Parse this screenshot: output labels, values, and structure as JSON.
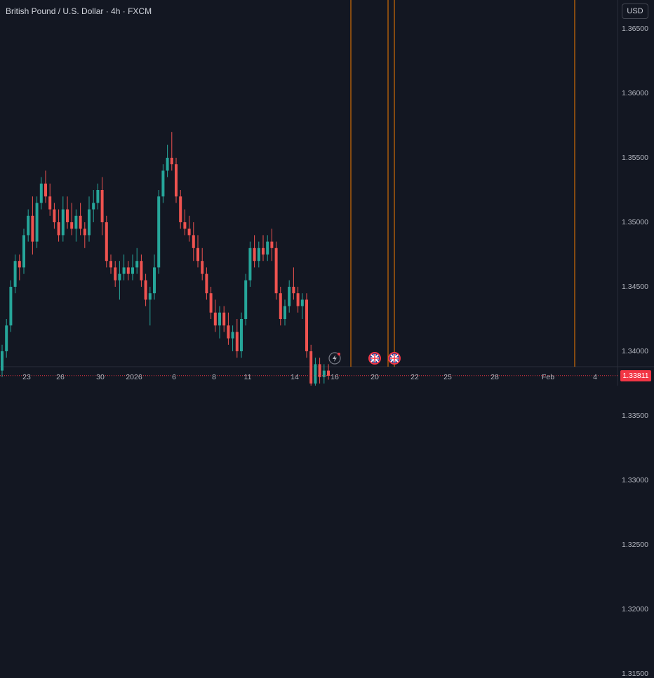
{
  "header": {
    "title": "British Pound / U.S. Dollar · 4h · FXCM"
  },
  "currency_button": "USD",
  "last_price": {
    "label": "1.33811",
    "color": "#f23645"
  },
  "colors": {
    "up": "#26a69a",
    "down": "#ef5350",
    "vline": "#f57c00",
    "price_line": "#f23645"
  },
  "events": [
    {
      "icon": "lightning-icon",
      "date": "17"
    },
    {
      "icon": "uk-flag-icon",
      "date": "21"
    },
    {
      "icon": "uk-flag-icon",
      "date": "21"
    }
  ],
  "chart_data": {
    "type": "candlestick",
    "title": "British Pound / U.S. Dollar · 4h · FXCM",
    "y_ticks": [
      "1.36500",
      "1.36000",
      "1.35500",
      "1.35000",
      "1.34500",
      "1.34000",
      "1.33500",
      "1.33000",
      "1.32500",
      "1.32000",
      "1.31500"
    ],
    "x_ticks": [
      "23",
      "26",
      "30",
      "2026",
      "6",
      "8",
      "11",
      "14",
      "16",
      "20",
      "22",
      "25",
      "28",
      "Feb",
      "4"
    ],
    "ylim": [
      1.3115,
      1.3675
    ],
    "last_price": 1.33811,
    "vertical_lines": [
      "17",
      "21",
      "21",
      "Feb 3"
    ],
    "ohlc_approx": [
      [
        1.3385,
        1.3405,
        1.338,
        1.34
      ],
      [
        1.34,
        1.3425,
        1.3395,
        1.342
      ],
      [
        1.342,
        1.3455,
        1.3415,
        1.345
      ],
      [
        1.345,
        1.3475,
        1.3445,
        1.347
      ],
      [
        1.347,
        1.3475,
        1.3455,
        1.3465
      ],
      [
        1.3465,
        1.3495,
        1.346,
        1.349
      ],
      [
        1.349,
        1.351,
        1.3485,
        1.3505
      ],
      [
        1.3505,
        1.352,
        1.3475,
        1.3485
      ],
      [
        1.3485,
        1.352,
        1.348,
        1.3515
      ],
      [
        1.3515,
        1.3535,
        1.351,
        1.353
      ],
      [
        1.353,
        1.354,
        1.3515,
        1.352
      ],
      [
        1.352,
        1.353,
        1.3505,
        1.351
      ],
      [
        1.351,
        1.3515,
        1.3495,
        1.35
      ],
      [
        1.35,
        1.351,
        1.3485,
        1.349
      ],
      [
        1.349,
        1.352,
        1.3485,
        1.351
      ],
      [
        1.351,
        1.352,
        1.3495,
        1.35
      ],
      [
        1.35,
        1.3515,
        1.349,
        1.3495
      ],
      [
        1.3495,
        1.351,
        1.3485,
        1.3505
      ],
      [
        1.3505,
        1.3515,
        1.349,
        1.3495
      ],
      [
        1.3495,
        1.35,
        1.348,
        1.349
      ],
      [
        1.349,
        1.352,
        1.3485,
        1.351
      ],
      [
        1.351,
        1.3525,
        1.35,
        1.3515
      ],
      [
        1.3515,
        1.353,
        1.351,
        1.3525
      ],
      [
        1.3525,
        1.3535,
        1.349,
        1.35
      ],
      [
        1.35,
        1.3505,
        1.3465,
        1.347
      ],
      [
        1.347,
        1.3475,
        1.346,
        1.3465
      ],
      [
        1.3465,
        1.347,
        1.345,
        1.3455
      ],
      [
        1.3455,
        1.347,
        1.344,
        1.346
      ],
      [
        1.346,
        1.3475,
        1.3455,
        1.3465
      ],
      [
        1.3465,
        1.347,
        1.3455,
        1.346
      ],
      [
        1.346,
        1.3475,
        1.3455,
        1.3465
      ],
      [
        1.3465,
        1.348,
        1.346,
        1.347
      ],
      [
        1.347,
        1.3475,
        1.345,
        1.3455
      ],
      [
        1.3455,
        1.346,
        1.3435,
        1.344
      ],
      [
        1.344,
        1.345,
        1.342,
        1.3445
      ],
      [
        1.3445,
        1.3475,
        1.344,
        1.3465
      ],
      [
        1.3465,
        1.3525,
        1.346,
        1.352
      ],
      [
        1.352,
        1.3545,
        1.3515,
        1.354
      ],
      [
        1.354,
        1.356,
        1.3535,
        1.355
      ],
      [
        1.355,
        1.357,
        1.354,
        1.3545
      ],
      [
        1.3545,
        1.355,
        1.3515,
        1.352
      ],
      [
        1.352,
        1.3525,
        1.3495,
        1.35
      ],
      [
        1.35,
        1.351,
        1.349,
        1.3495
      ],
      [
        1.3495,
        1.3505,
        1.3485,
        1.349
      ],
      [
        1.349,
        1.35,
        1.347,
        1.348
      ],
      [
        1.348,
        1.349,
        1.3465,
        1.347
      ],
      [
        1.347,
        1.348,
        1.3455,
        1.346
      ],
      [
        1.346,
        1.3465,
        1.344,
        1.3445
      ],
      [
        1.3445,
        1.345,
        1.3425,
        1.343
      ],
      [
        1.343,
        1.344,
        1.3415,
        1.342
      ],
      [
        1.342,
        1.3435,
        1.341,
        1.343
      ],
      [
        1.343,
        1.3435,
        1.3415,
        1.342
      ],
      [
        1.342,
        1.343,
        1.3405,
        1.341
      ],
      [
        1.341,
        1.342,
        1.34,
        1.3415
      ],
      [
        1.3415,
        1.3425,
        1.3395,
        1.34
      ],
      [
        1.34,
        1.343,
        1.3395,
        1.3425
      ],
      [
        1.3425,
        1.346,
        1.342,
        1.3455
      ],
      [
        1.3455,
        1.3485,
        1.345,
        1.348
      ],
      [
        1.348,
        1.349,
        1.3465,
        1.347
      ],
      [
        1.347,
        1.3485,
        1.3465,
        1.348
      ],
      [
        1.348,
        1.349,
        1.347,
        1.3475
      ],
      [
        1.3475,
        1.349,
        1.347,
        1.3485
      ],
      [
        1.3485,
        1.3495,
        1.347,
        1.348
      ],
      [
        1.348,
        1.3485,
        1.344,
        1.3445
      ],
      [
        1.3445,
        1.345,
        1.342,
        1.3425
      ],
      [
        1.3425,
        1.344,
        1.342,
        1.3435
      ],
      [
        1.3435,
        1.3455,
        1.343,
        1.345
      ],
      [
        1.345,
        1.3465,
        1.344,
        1.3445
      ],
      [
        1.3445,
        1.345,
        1.343,
        1.3435
      ],
      [
        1.3435,
        1.3445,
        1.3425,
        1.344
      ],
      [
        1.344,
        1.3445,
        1.3395,
        1.34
      ],
      [
        1.34,
        1.3405,
        1.337,
        1.3375
      ],
      [
        1.3375,
        1.3395,
        1.3365,
        1.339
      ],
      [
        1.339,
        1.3395,
        1.3375,
        1.338
      ],
      [
        1.338,
        1.339,
        1.3375,
        1.3385
      ],
      [
        1.3385,
        1.339,
        1.3378,
        1.3381
      ]
    ]
  }
}
